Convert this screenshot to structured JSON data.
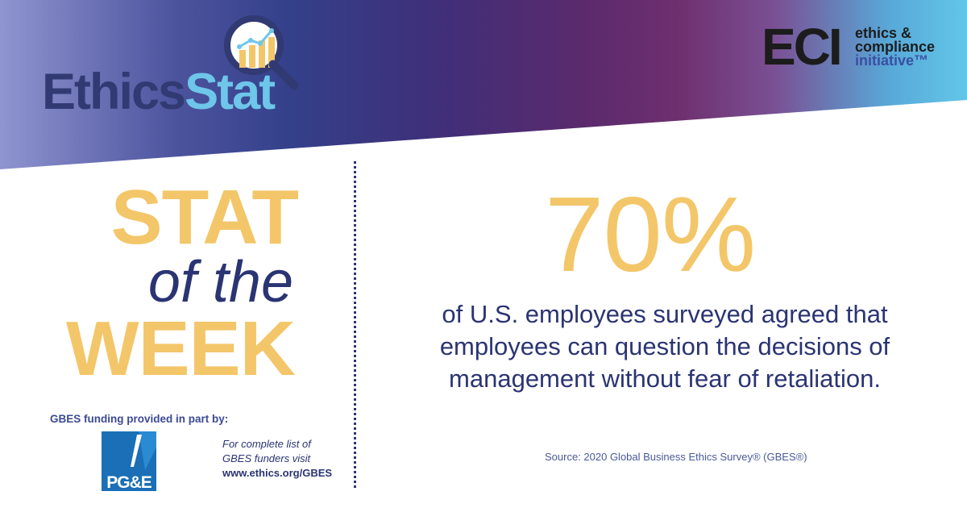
{
  "logos": {
    "ethicsstat": {
      "part1": "Ethics",
      "part2": "Stat"
    },
    "eci": {
      "mark": "ECI",
      "line1": "ethics &",
      "line2": "compliance",
      "line3": "initiative™"
    },
    "pge": {
      "text": "PG&E"
    }
  },
  "heading": {
    "line1": "STAT",
    "line2": "of the",
    "line3": "WEEK"
  },
  "stat": {
    "value": "70%",
    "lines": [
      "of U.S. employees surveyed agreed that",
      "employees can question the decisions of",
      "management without fear of retaliation."
    ],
    "source": "Source: 2020 Global Business Ethics Survey® (GBES®)"
  },
  "funding": {
    "label": "GBES funding provided in part by:",
    "note_line1": "For complete list of",
    "note_line2": "GBES funders visit",
    "url": "www.ethics.org/GBES"
  },
  "colors": {
    "navy": "#2b3473",
    "gold": "#f3c669",
    "light_blue": "#6ec6ea",
    "eci_blue": "#3b4ea3"
  },
  "icons": [
    "magnifier-chart-icon",
    "pge-logo-icon"
  ]
}
